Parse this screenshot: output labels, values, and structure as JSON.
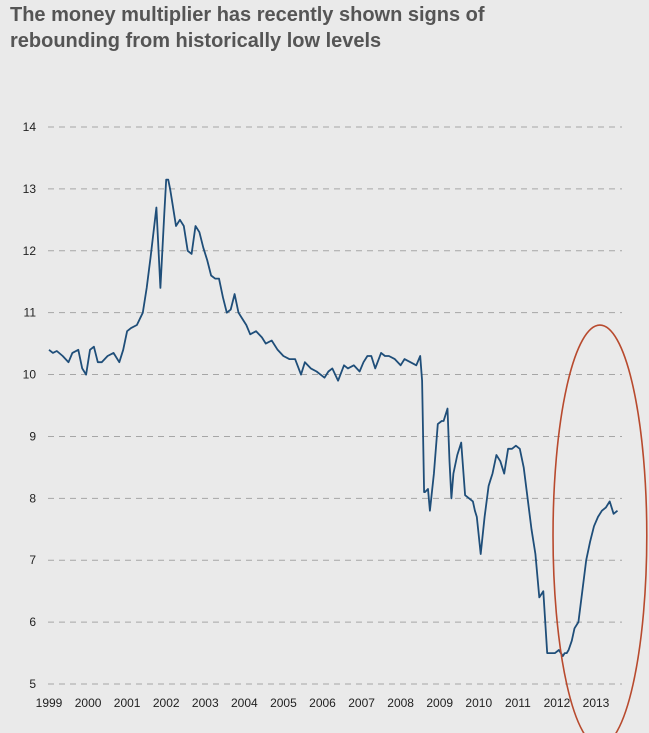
{
  "chart_data": {
    "type": "line",
    "title": "The money multiplier has recently shown signs of\nrebounding from historically low levels",
    "xlabel": "",
    "ylabel": "",
    "ylim": [
      5,
      14
    ],
    "xlim": [
      1999,
      2013.75
    ],
    "x_ticks": [
      "1999",
      "2000",
      "2001",
      "2002",
      "2003",
      "2004",
      "2005",
      "2006",
      "2007",
      "2008",
      "2009",
      "2010",
      "2011",
      "2012",
      "2013"
    ],
    "y_ticks": [
      5,
      6,
      7,
      8,
      9,
      10,
      11,
      12,
      13,
      14
    ],
    "grid": "horizontal dashed",
    "colors": {
      "line": "#1f4e79",
      "highlight": "#b84a2e",
      "grid": "#a6a6a6"
    },
    "series": [
      {
        "name": "Money multiplier",
        "x": [
          1999.0,
          1999.1,
          1999.2,
          1999.35,
          1999.5,
          1999.6,
          1999.75,
          1999.85,
          1999.95,
          2000.05,
          2000.15,
          2000.25,
          2000.35,
          2000.5,
          2000.65,
          2000.8,
          2000.9,
          2001.0,
          2001.1,
          2001.25,
          2001.4,
          2001.5,
          2001.6,
          2001.75,
          2001.85,
          2001.95,
          2002.0,
          2002.05,
          2002.1,
          2002.15,
          2002.25,
          2002.35,
          2002.45,
          2002.55,
          2002.65,
          2002.75,
          2002.85,
          2002.95,
          2003.05,
          2003.15,
          2003.25,
          2003.35,
          2003.45,
          2003.55,
          2003.65,
          2003.75,
          2003.85,
          2003.95,
          2004.05,
          2004.15,
          2004.3,
          2004.45,
          2004.55,
          2004.7,
          2004.85,
          2005.0,
          2005.15,
          2005.3,
          2005.45,
          2005.55,
          2005.7,
          2005.85,
          2005.95,
          2006.05,
          2006.15,
          2006.25,
          2006.4,
          2006.55,
          2006.65,
          2006.8,
          2006.95,
          2007.05,
          2007.15,
          2007.25,
          2007.35,
          2007.5,
          2007.6,
          2007.7,
          2007.85,
          2008.0,
          2008.1,
          2008.25,
          2008.4,
          2008.5,
          2008.55,
          2008.6,
          2008.62,
          2008.7,
          2008.75,
          2008.85,
          2008.95,
          2009.05,
          2009.1,
          2009.2,
          2009.25,
          2009.3,
          2009.35,
          2009.45,
          2009.55,
          2009.65,
          2009.75,
          2009.85,
          2009.9,
          2009.95,
          2010.05,
          2010.15,
          2010.25,
          2010.3,
          2010.35,
          2010.45,
          2010.55,
          2010.65,
          2010.75,
          2010.85,
          2010.95,
          2011.05,
          2011.15,
          2011.25,
          2011.35,
          2011.45,
          2011.55,
          2011.65,
          2011.75,
          2011.85,
          2011.95,
          2012.05,
          2012.15,
          2012.2,
          2012.25,
          2012.3,
          2012.38,
          2012.45,
          2012.55,
          2012.65,
          2012.75,
          2012.85,
          2012.95,
          2013.05,
          2013.15,
          2013.25,
          2013.35,
          2013.45,
          2013.55
        ],
        "y": [
          10.4,
          10.35,
          10.38,
          10.3,
          10.2,
          10.35,
          10.4,
          10.1,
          10.0,
          10.4,
          10.45,
          10.2,
          10.2,
          10.3,
          10.35,
          10.2,
          10.4,
          10.7,
          10.75,
          10.8,
          11.0,
          11.4,
          11.9,
          12.7,
          11.4,
          12.6,
          13.15,
          13.15,
          13.0,
          12.8,
          12.4,
          12.5,
          12.4,
          12.0,
          11.95,
          12.4,
          12.3,
          12.05,
          11.85,
          11.6,
          11.55,
          11.55,
          11.25,
          11.0,
          11.05,
          11.3,
          11.0,
          10.9,
          10.8,
          10.65,
          10.7,
          10.6,
          10.5,
          10.55,
          10.4,
          10.3,
          10.25,
          10.25,
          10.0,
          10.2,
          10.1,
          10.05,
          10.0,
          9.95,
          10.05,
          10.1,
          9.9,
          10.15,
          10.1,
          10.15,
          10.05,
          10.2,
          10.3,
          10.3,
          10.1,
          10.35,
          10.3,
          10.3,
          10.25,
          10.15,
          10.25,
          10.2,
          10.15,
          10.3,
          9.9,
          8.1,
          8.1,
          8.15,
          7.8,
          8.4,
          9.2,
          9.25,
          9.25,
          9.45,
          8.6,
          8.0,
          8.4,
          8.7,
          8.9,
          8.05,
          8.0,
          7.95,
          7.8,
          7.7,
          7.1,
          7.7,
          8.2,
          8.3,
          8.4,
          8.7,
          8.6,
          8.4,
          8.8,
          8.8,
          8.85,
          8.8,
          8.5,
          8.0,
          7.5,
          7.1,
          6.4,
          6.5,
          5.5,
          5.5,
          5.5,
          5.55,
          5.45,
          5.5,
          5.5,
          5.55,
          5.7,
          5.9,
          6.0,
          6.5,
          7.0,
          7.3,
          7.55,
          7.7,
          7.8,
          7.85,
          7.95,
          7.75,
          7.8
        ]
      }
    ],
    "annotations": [
      {
        "type": "ellipse",
        "description": "circle highlighting rebound",
        "x_center": 2013.1,
        "y_center": 7.4,
        "x_radius": 1.2,
        "y_radius": 3.4
      }
    ]
  }
}
